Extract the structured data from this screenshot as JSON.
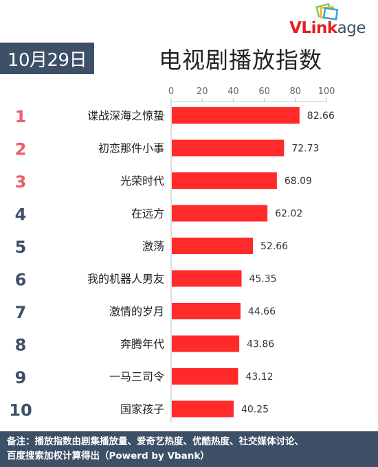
{
  "header": {
    "date": "10月29日",
    "title": "电视剧播放指数",
    "logo": "VLinkage"
  },
  "chart_data": {
    "type": "bar",
    "orientation": "horizontal",
    "title": "电视剧播放指数",
    "xlim": [
      0,
      100
    ],
    "ticks": [
      "0",
      "20",
      "40",
      "60",
      "80",
      "100"
    ],
    "ranks": [
      "1",
      "2",
      "3",
      "4",
      "5",
      "6",
      "7",
      "8",
      "9",
      "10"
    ],
    "categories": [
      "谍战深海之惊蛰",
      "初恋那件小事",
      "光荣时代",
      "在远方",
      "激荡",
      "我的机器人男友",
      "激情的岁月",
      "奔腾年代",
      "一马三司令",
      "国家孩子"
    ],
    "values": [
      82.66,
      72.73,
      68.09,
      62.02,
      52.66,
      45.35,
      44.66,
      43.86,
      43.12,
      40.25
    ],
    "value_labels": [
      "82.66",
      "72.73",
      "68.09",
      "62.02",
      "52.66",
      "45.35",
      "44.66",
      "43.86",
      "43.12",
      "40.25"
    ],
    "bar_color": "#ff2a2a",
    "rank_colors": {
      "top3": "#f05a6a",
      "rest": "#3d5068"
    },
    "grid": false
  },
  "footer": {
    "line1": "备注：播放指数由剧集播放量、爱奇艺热度、优酷热度、社交媒体讨论、",
    "line2": "百度搜索加权计算得出（Powerd by Vbank）"
  }
}
